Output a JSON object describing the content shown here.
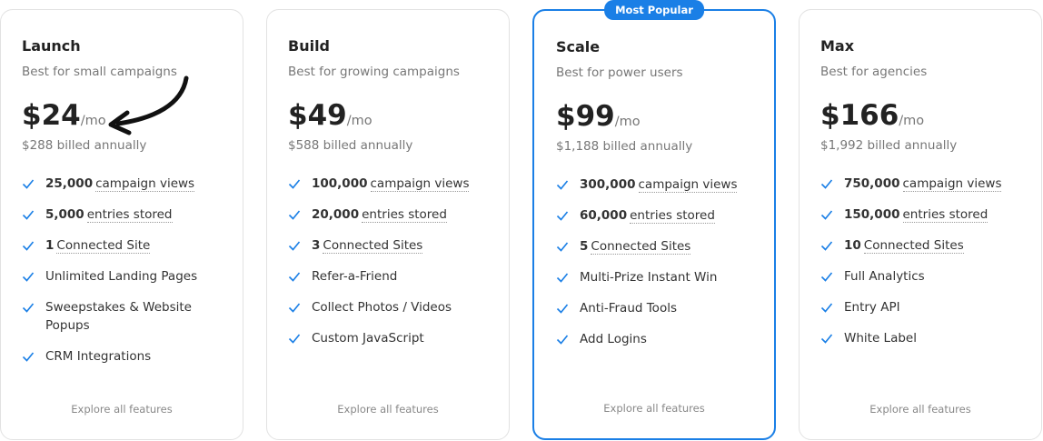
{
  "badge": "Most Popular",
  "plans": [
    {
      "name": "Launch",
      "tagline": "Best for small campaigns",
      "price": "$24",
      "period": "/mo",
      "billed": "$288 billed annually",
      "features": [
        {
          "strong": "25,000",
          "text": "campaign views"
        },
        {
          "strong": "5,000",
          "text": "entries stored"
        },
        {
          "strong": "1",
          "text": "Connected Site"
        },
        {
          "text": "Unlimited Landing Pages"
        },
        {
          "text": "Sweepstakes & Website Popups"
        },
        {
          "text": "CRM Integrations"
        }
      ],
      "link": "Explore all features"
    },
    {
      "name": "Build",
      "tagline": "Best for growing campaigns",
      "price": "$49",
      "period": "/mo",
      "billed": "$588 billed annually",
      "features": [
        {
          "strong": "100,000",
          "text": "campaign views"
        },
        {
          "strong": "20,000",
          "text": "entries stored"
        },
        {
          "strong": "3",
          "text": "Connected Sites"
        },
        {
          "text": "Refer-a-Friend"
        },
        {
          "text": "Collect Photos / Videos"
        },
        {
          "text": "Custom JavaScript"
        }
      ],
      "link": "Explore all features"
    },
    {
      "name": "Scale",
      "tagline": "Best for power users",
      "price": "$99",
      "period": "/mo",
      "billed": "$1,188 billed annually",
      "features": [
        {
          "strong": "300,000",
          "text": "campaign views"
        },
        {
          "strong": "60,000",
          "text": "entries stored"
        },
        {
          "strong": "5",
          "text": "Connected Sites"
        },
        {
          "text": "Multi-Prize Instant Win"
        },
        {
          "text": "Anti-Fraud Tools"
        },
        {
          "text": "Add Logins"
        }
      ],
      "link": "Explore all features"
    },
    {
      "name": "Max",
      "tagline": "Best for agencies",
      "price": "$166",
      "period": "/mo",
      "billed": "$1,992 billed annually",
      "features": [
        {
          "strong": "750,000",
          "text": "campaign views"
        },
        {
          "strong": "150,000",
          "text": "entries stored"
        },
        {
          "strong": "10",
          "text": "Connected Sites"
        },
        {
          "text": "Full Analytics"
        },
        {
          "text": "Entry API"
        },
        {
          "text": "White Label"
        }
      ],
      "link": "Explore all features"
    }
  ]
}
